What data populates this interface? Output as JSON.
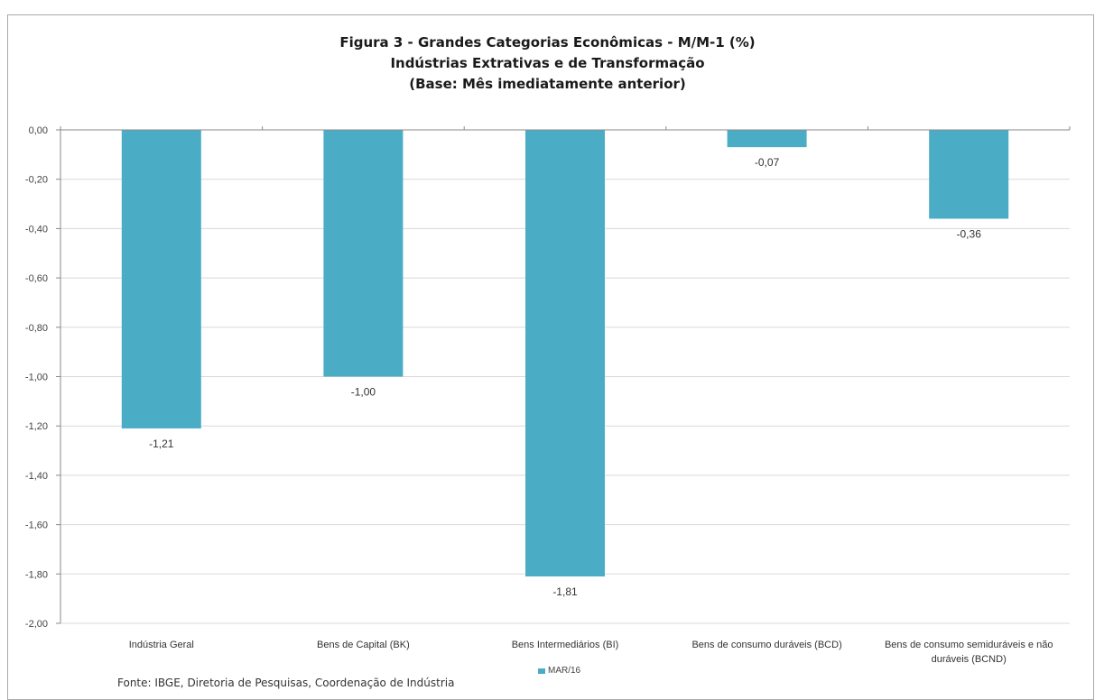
{
  "chart_data": {
    "type": "bar",
    "title": "Figura 3 - Grandes Categorias Econômicas - M/M-1 (%)",
    "subtitle": "Indústrias  Extrativas e de Transformação",
    "subtitle2": "(Base: Mês imediatamente anterior)",
    "categories": [
      "Indústria Geral",
      "Bens de Capital (BK)",
      "Bens Intermediários (BI)",
      "Bens de consumo duráveis (BCD)",
      "Bens de consumo semiduráveis e não duráveis (BCND)"
    ],
    "series": [
      {
        "name": "MAR/16",
        "values": [
          -1.21,
          -1.0,
          -1.81,
          -0.07,
          -0.36
        ]
      }
    ],
    "data_labels": [
      "-1,21",
      "-1,00",
      "-1,81",
      "-0,07",
      "-0,36"
    ],
    "ylim": [
      -2.0,
      0.0
    ],
    "yticks": [
      0,
      -0.2,
      -0.4,
      -0.6,
      -0.8,
      -1.0,
      -1.2,
      -1.4,
      -1.6,
      -1.8,
      -2.0
    ],
    "ytick_labels": [
      "0,00",
      "-0,20",
      "-0,40",
      "-0,60",
      "-0,80",
      "-1,00",
      "-1,20",
      "-1,40",
      "-1,60",
      "-1,80",
      "-2,00"
    ],
    "grid": true,
    "legend_position": "bottom",
    "bar_color": "#4bacc6"
  },
  "source": "Fonte: IBGE, Diretoria de Pesquisas, Coordenação de Indústria"
}
